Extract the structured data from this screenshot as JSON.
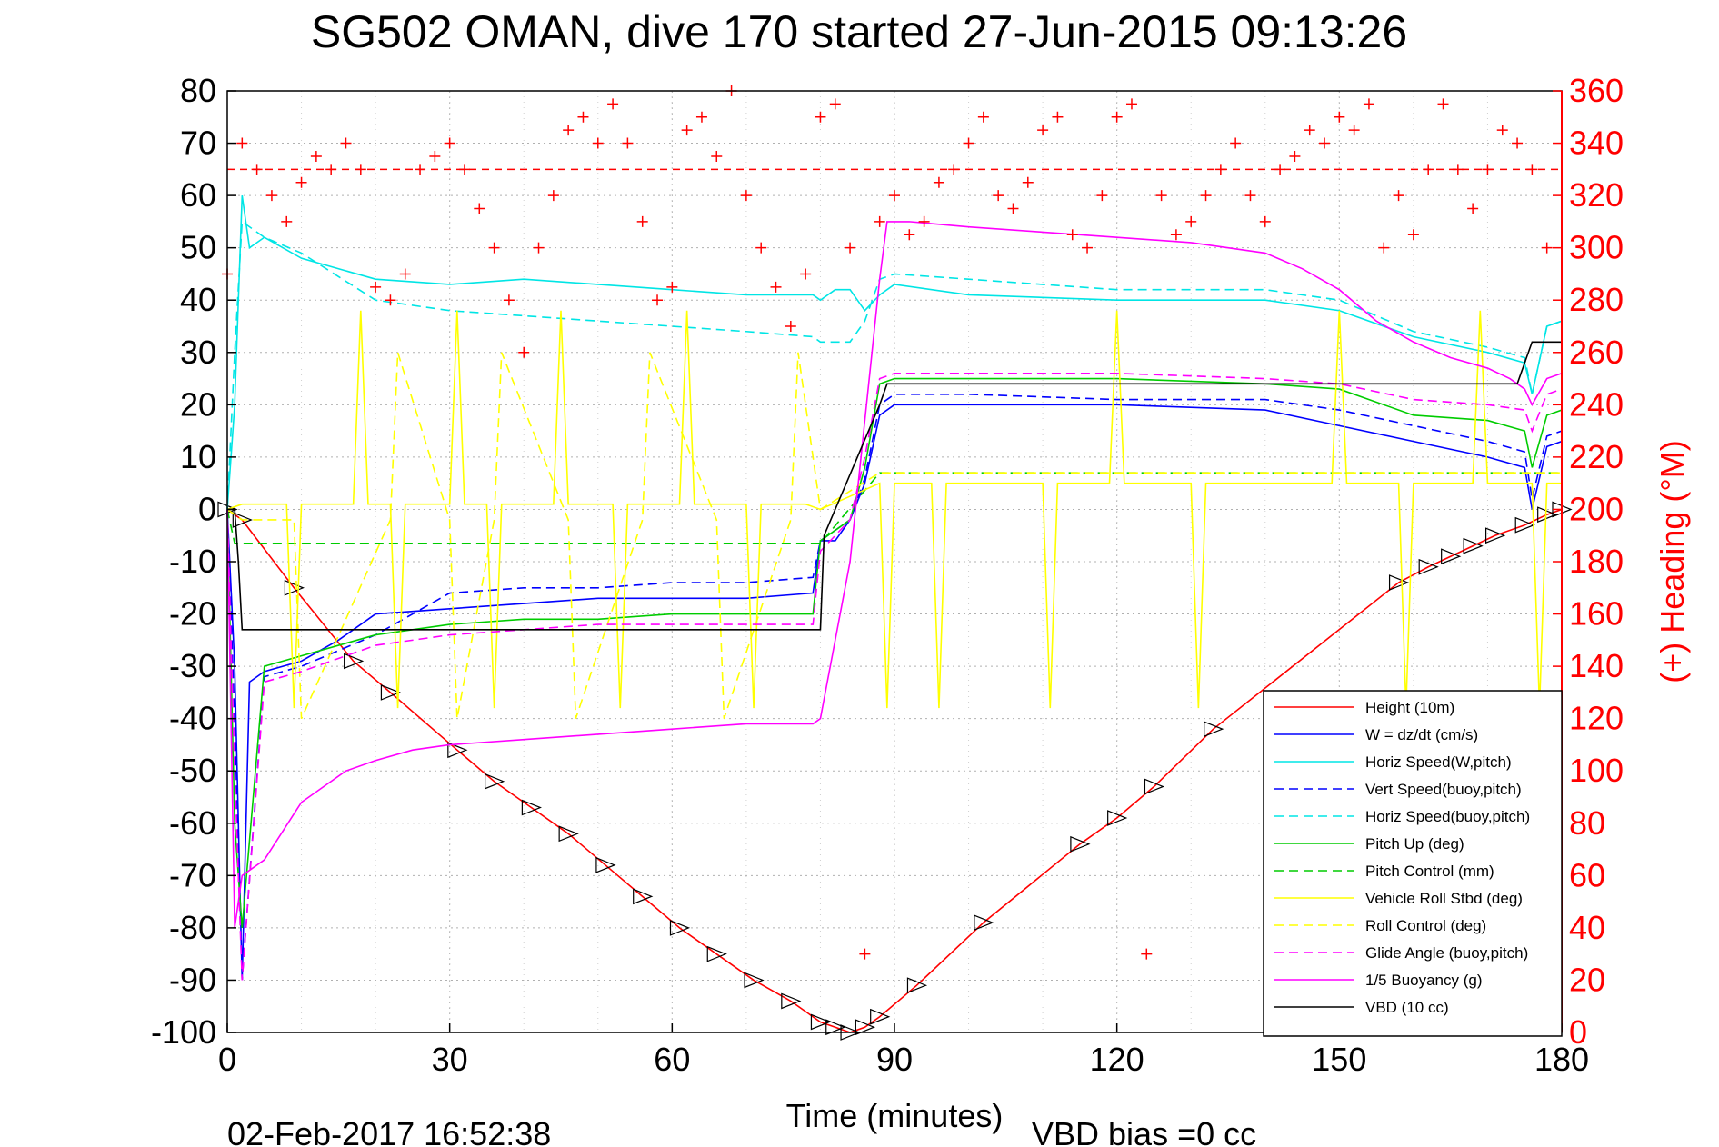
{
  "chart_data": {
    "type": "line",
    "title": "SG502 OMAN, dive 170 started 27-Jun-2015 09:13:26",
    "xlabel": "Time (minutes)",
    "ylabel": "",
    "ylabel_right": "(+) Heading (°M)",
    "footer_left": "02-Feb-2017 16:52:38",
    "footer_right": "VBD bias =0 cc",
    "xlim": [
      0,
      180
    ],
    "ylim": [
      -100,
      80
    ],
    "ylim_right": [
      0,
      360
    ],
    "grid": true,
    "legend_position": "lower-right",
    "x_ticks": [
      0,
      30,
      60,
      90,
      120,
      150,
      180
    ],
    "y_ticks": [
      -100,
      -90,
      -80,
      -70,
      -60,
      -50,
      -40,
      -30,
      -20,
      -10,
      0,
      10,
      20,
      30,
      40,
      50,
      60,
      70,
      80
    ],
    "y_ticks_right": [
      0,
      20,
      40,
      60,
      80,
      100,
      120,
      140,
      160,
      180,
      200,
      220,
      240,
      260,
      280,
      300,
      320,
      340,
      360
    ],
    "series": [
      {
        "name": "Height (10m)",
        "color": "#ff0000",
        "style": "solid",
        "marker": "triangle",
        "x": [
          0,
          2,
          9,
          17,
          22,
          31,
          36,
          41,
          46,
          51,
          56,
          61,
          66,
          71,
          76,
          80,
          82,
          84,
          86,
          88,
          93,
          102,
          115,
          120,
          125,
          133,
          158,
          162,
          165,
          168,
          171,
          175,
          178,
          180
        ],
        "y": [
          0,
          -2,
          -15,
          -29,
          -35,
          -46,
          -52,
          -57,
          -62,
          -68,
          -74,
          -80,
          -85,
          -90,
          -94,
          -98,
          -99,
          -100,
          -99,
          -97,
          -91,
          -79,
          -64,
          -59,
          -53,
          -42,
          -14,
          -11,
          -9,
          -7,
          -5,
          -3,
          -1,
          0
        ]
      },
      {
        "name": "W = dz/dt (cm/s)",
        "color": "#0000ff",
        "style": "solid",
        "x": [
          0,
          1,
          2,
          3,
          5,
          10,
          15,
          20,
          30,
          40,
          50,
          60,
          70,
          79,
          80,
          82,
          84,
          86,
          88,
          90,
          100,
          120,
          140,
          150,
          160,
          170,
          175,
          176,
          178,
          180
        ],
        "y": [
          0,
          -30,
          -90,
          -33,
          -31,
          -29,
          -25,
          -20,
          -19,
          -18,
          -17,
          -17,
          -17,
          -16,
          -6,
          -6,
          -2,
          5,
          18,
          20,
          20,
          20,
          19,
          16,
          13,
          10,
          8,
          0,
          12,
          13
        ]
      },
      {
        "name": "Horiz Speed(W,pitch)",
        "color": "#00e5e5",
        "style": "solid",
        "x": [
          0,
          1,
          2,
          3,
          5,
          10,
          20,
          30,
          40,
          50,
          60,
          70,
          79,
          80,
          82,
          84,
          86,
          88,
          90,
          100,
          120,
          140,
          150,
          160,
          170,
          175,
          176,
          178,
          180
        ],
        "y": [
          0,
          20,
          60,
          50,
          52,
          48,
          44,
          43,
          44,
          43,
          42,
          41,
          41,
          40,
          42,
          42,
          38,
          41,
          43,
          41,
          40,
          40,
          38,
          33,
          30,
          28,
          22,
          35,
          36
        ]
      },
      {
        "name": "Vert Speed(buoy,pitch)",
        "color": "#0000ff",
        "style": "dashed",
        "x": [
          0,
          1,
          2,
          5,
          10,
          20,
          30,
          40,
          50,
          60,
          70,
          79,
          80,
          84,
          86,
          88,
          90,
          100,
          120,
          140,
          150,
          160,
          170,
          175,
          176,
          178,
          180
        ],
        "y": [
          0,
          -40,
          -90,
          -32,
          -30,
          -24,
          -16,
          -15,
          -15,
          -14,
          -14,
          -13,
          -6,
          -2,
          6,
          20,
          22,
          22,
          21,
          21,
          19,
          16,
          13,
          11,
          2,
          14,
          15
        ]
      },
      {
        "name": "Horiz Speed(buoy,pitch)",
        "color": "#00e5e5",
        "style": "dashed",
        "x": [
          0,
          1,
          2,
          5,
          10,
          20,
          30,
          40,
          50,
          60,
          70,
          79,
          80,
          84,
          86,
          88,
          90,
          100,
          120,
          140,
          150,
          160,
          170,
          175,
          176,
          178,
          180
        ],
        "y": [
          0,
          30,
          55,
          52,
          49,
          40,
          38,
          37,
          36,
          35,
          34,
          33,
          32,
          32,
          36,
          44,
          45,
          44,
          42,
          42,
          40,
          34,
          31,
          29,
          22,
          35,
          36
        ]
      },
      {
        "name": "Pitch Up (deg)",
        "color": "#00cc00",
        "style": "solid",
        "x": [
          0,
          1,
          2,
          5,
          10,
          20,
          30,
          40,
          50,
          60,
          70,
          79,
          80,
          84,
          86,
          88,
          90,
          100,
          120,
          140,
          150,
          160,
          170,
          175,
          176,
          178,
          180
        ],
        "y": [
          0,
          -60,
          -80,
          -30,
          -28,
          -24,
          -22,
          -21,
          -21,
          -20,
          -20,
          -20,
          -6,
          -2,
          8,
          24,
          25,
          25,
          25,
          24,
          23,
          18,
          17,
          15,
          8,
          18,
          19
        ]
      },
      {
        "name": "Pitch Control (mm)",
        "color": "#00cc00",
        "style": "dashed",
        "x": [
          0,
          1,
          79,
          80,
          88,
          180
        ],
        "y": [
          0,
          -6.5,
          -6.5,
          -6.5,
          7,
          7
        ]
      },
      {
        "name": "Vehicle Roll Stbd (deg)",
        "color": "#ffff00",
        "style": "solid",
        "x": [
          0,
          2,
          8,
          9,
          10,
          17,
          18,
          19,
          22,
          23,
          24,
          30,
          31,
          32,
          35,
          36,
          37,
          44,
          45,
          46,
          52,
          53,
          54,
          61,
          62,
          63,
          70,
          71,
          72,
          78,
          80,
          88,
          89,
          90,
          95,
          96,
          97,
          110,
          111,
          112,
          119,
          120,
          121,
          130,
          131,
          132,
          149,
          150,
          151,
          158,
          159,
          160,
          168,
          169,
          170,
          176,
          177,
          178,
          180
        ],
        "y": [
          0,
          1,
          1,
          -38,
          1,
          1,
          38,
          1,
          1,
          -38,
          1,
          1,
          38,
          1,
          1,
          -38,
          1,
          1,
          38,
          1,
          1,
          -38,
          1,
          1,
          38,
          1,
          1,
          -38,
          1,
          1,
          0,
          5,
          -38,
          5,
          5,
          -38,
          5,
          5,
          -38,
          5,
          5,
          38,
          5,
          5,
          -38,
          5,
          5,
          38,
          5,
          5,
          -38,
          5,
          5,
          38,
          5,
          5,
          -38,
          5,
          5
        ]
      },
      {
        "name": "Roll Control (deg)",
        "color": "#ffff00",
        "style": "dashed",
        "x": [
          0,
          2,
          9,
          10,
          22,
          23,
          30,
          31,
          36,
          37,
          46,
          47,
          56,
          57,
          66,
          67,
          76,
          77,
          80,
          88,
          89,
          180
        ],
        "y": [
          0,
          -2,
          -2,
          -40,
          -2,
          30,
          -2,
          -40,
          -2,
          30,
          -2,
          -40,
          -2,
          30,
          -2,
          -40,
          -2,
          30,
          0,
          7,
          7,
          7
        ]
      },
      {
        "name": "Glide Angle (buoy,pitch)",
        "color": "#ff00ff",
        "style": "dashed",
        "x": [
          0,
          1,
          2,
          5,
          10,
          20,
          30,
          40,
          50,
          60,
          70,
          79,
          80,
          84,
          86,
          88,
          90,
          100,
          120,
          140,
          150,
          160,
          170,
          175,
          176,
          178,
          180
        ],
        "y": [
          0,
          -50,
          -90,
          -33,
          -31,
          -26,
          -24,
          -23,
          -22,
          -22,
          -22,
          -22,
          -8,
          -2,
          10,
          25,
          26,
          26,
          26,
          25,
          24,
          21,
          20,
          19,
          15,
          22,
          23
        ]
      },
      {
        "name": "1/5 Buoyancy (g)",
        "color": "#ff00ff",
        "style": "solid",
        "x": [
          0,
          1,
          2,
          5,
          10,
          16,
          20,
          25,
          30,
          40,
          50,
          60,
          70,
          79,
          80,
          84,
          88,
          89,
          92,
          100,
          110,
          120,
          130,
          140,
          145,
          150,
          155,
          160,
          165,
          170,
          173,
          175,
          176,
          178,
          180
        ],
        "y": [
          0,
          -80,
          -70,
          -67,
          -56,
          -50,
          -48,
          -46,
          -45,
          -44,
          -43,
          -42,
          -41,
          -41,
          -40,
          -10,
          44,
          55,
          55,
          54,
          53,
          52,
          51,
          49,
          46,
          42,
          36,
          32,
          29,
          27,
          25,
          23,
          20,
          25,
          26
        ]
      },
      {
        "name": "VBD (10 cc)",
        "color": "#000000",
        "style": "solid",
        "x": [
          0,
          1,
          1.5,
          2,
          80,
          80.5,
          88,
          89,
          174,
          175,
          176,
          180
        ],
        "y": [
          0,
          0,
          -10,
          -23,
          -23,
          -5,
          20,
          24,
          24,
          28,
          32,
          32
        ]
      },
      {
        "name": "Heading",
        "color": "#ff0000",
        "style": "markers",
        "axis": "right",
        "marker": "+",
        "target_heading": 330,
        "x": [
          0,
          2,
          4,
          6,
          8,
          10,
          12,
          14,
          16,
          18,
          20,
          22,
          24,
          26,
          28,
          30,
          32,
          34,
          36,
          38,
          40,
          42,
          44,
          46,
          48,
          50,
          52,
          54,
          56,
          58,
          60,
          62,
          64,
          66,
          68,
          70,
          72,
          74,
          76,
          78,
          80,
          82,
          84,
          86,
          88,
          90,
          92,
          94,
          96,
          98,
          100,
          102,
          104,
          106,
          108,
          110,
          112,
          114,
          116,
          118,
          120,
          122,
          124,
          126,
          128,
          130,
          132,
          134,
          136,
          138,
          140,
          142,
          144,
          146,
          148,
          150,
          152,
          154,
          156,
          158,
          160,
          162,
          164,
          166,
          168,
          170,
          172,
          174,
          176,
          178
        ],
        "y": [
          290,
          340,
          330,
          320,
          310,
          325,
          335,
          330,
          340,
          330,
          285,
          280,
          290,
          330,
          335,
          340,
          330,
          315,
          300,
          280,
          260,
          300,
          320,
          345,
          350,
          340,
          355,
          340,
          310,
          280,
          285,
          345,
          350,
          335,
          360,
          320,
          300,
          285,
          270,
          290,
          350,
          355,
          300,
          30,
          310,
          320,
          305,
          310,
          325,
          330,
          340,
          350,
          320,
          315,
          325,
          345,
          350,
          305,
          300,
          320,
          350,
          355,
          30,
          320,
          305,
          310,
          320,
          330,
          340,
          320,
          310,
          330,
          335,
          345,
          340,
          350,
          345,
          355,
          300,
          320,
          305,
          330,
          355,
          330,
          315,
          330,
          345,
          340,
          330,
          300
        ]
      }
    ]
  }
}
